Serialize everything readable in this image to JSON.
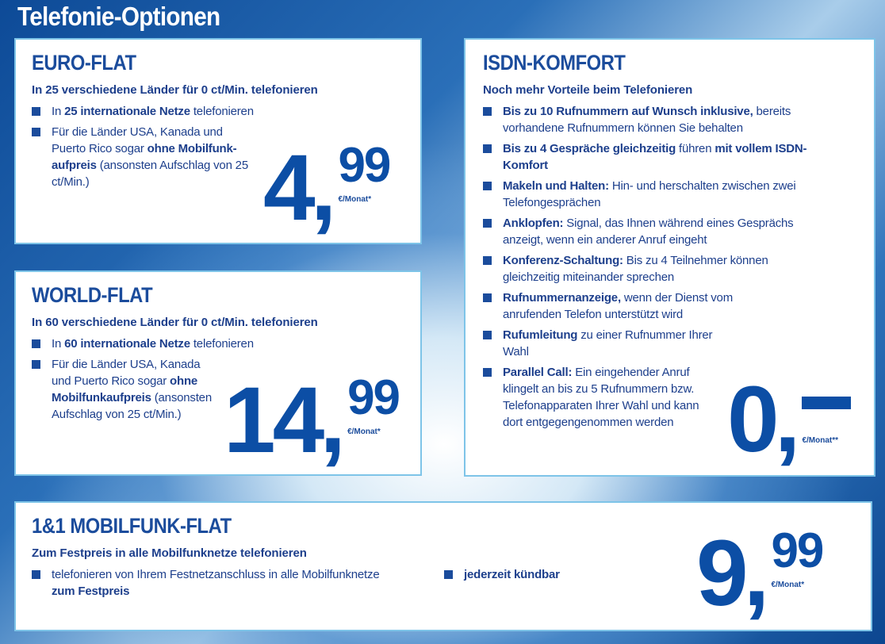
{
  "page_title": "Telefonie-Optionen",
  "colors": {
    "brand_blue": "#1b4c9c",
    "price_blue": "#0c4ea5",
    "box_border": "#7ec4e8"
  },
  "euro_flat": {
    "title": "EURO-FLAT",
    "subtitle": "In 25 verschiedene Länder für 0 ct/Min. telefonieren",
    "bullets": [
      [
        {
          "t": "In "
        },
        {
          "t": "25 internationale Netze",
          "b": true
        },
        {
          "t": " telefonieren"
        }
      ],
      [
        {
          "t": "Für die Länder USA, Kanada und Puerto Rico sogar "
        },
        {
          "t": "ohne Mobilfunk-aufpreis",
          "b": true
        },
        {
          "t": " (ansonsten Aufschlag von 25 ct/Min.)"
        }
      ]
    ],
    "price": {
      "int": "4",
      "dec": "99",
      "unit": "€/Monat*"
    }
  },
  "world_flat": {
    "title": "WORLD-FLAT",
    "subtitle": "In 60 verschiedene Länder für 0 ct/Min. telefonieren",
    "bullets": [
      [
        {
          "t": "In "
        },
        {
          "t": "60 internationale Netze",
          "b": true
        },
        {
          "t": " telefonieren"
        }
      ],
      [
        {
          "t": "Für die Länder USA, Kanada und Puerto Rico sogar "
        },
        {
          "t": "ohne Mobilfunkaufpreis",
          "b": true
        },
        {
          "t": " (ansonsten Aufschlag von 25 ct/Min.)"
        }
      ]
    ],
    "price": {
      "int": "14",
      "dec": "99",
      "unit": "€/Monat*"
    }
  },
  "isdn_komfort": {
    "title": "ISDN-KOMFORT",
    "subtitle": "Noch mehr Vorteile beim Telefonieren",
    "bullets": [
      [
        {
          "t": "Bis zu 10 Rufnummern auf Wunsch inklusive,",
          "b": true
        },
        {
          "t": " bereits vorhandene Rufnummern können Sie behalten"
        }
      ],
      [
        {
          "t": "Bis zu 4 Gespräche gleichzeitig",
          "b": true
        },
        {
          "t": " führen "
        },
        {
          "t": "mit vollem ISDN-Komfort",
          "b": true
        }
      ],
      [
        {
          "t": "Makeln und Halten:",
          "b": true
        },
        {
          "t": " Hin- und herschalten zwischen zwei Telefongesprächen"
        }
      ],
      [
        {
          "t": "Anklopfen:",
          "b": true
        },
        {
          "t": " Signal, das Ihnen während eines Gesprächs anzeigt, wenn ein anderer Anruf eingeht"
        }
      ],
      [
        {
          "t": "Konferenz-Schaltung:",
          "b": true
        },
        {
          "t": " Bis zu 4 Teilnehmer können gleichzeitig miteinander sprechen"
        }
      ],
      [
        {
          "t": "Rufnummernanzeige,",
          "b": true
        },
        {
          "t": " wenn der Dienst vom anrufenden Telefon unterstützt wird"
        }
      ],
      [
        {
          "t": "Rufumleitung",
          "b": true
        },
        {
          "t": " zu einer Rufnummer Ihrer Wahl"
        }
      ],
      [
        {
          "t": "Parallel Call:",
          "b": true
        },
        {
          "t": " Ein eingehender Anruf klingelt an bis zu 5 Rufnummern bzw. Telefonapparaten Ihrer Wahl und kann dort entgegengenommen werden"
        }
      ]
    ],
    "price": {
      "int": "0",
      "dec": "–",
      "unit": "€/Monat**"
    }
  },
  "mobilfunk_flat": {
    "title": "1&1 MOBILFUNK-FLAT",
    "subtitle": "Zum Festpreis in alle Mobilfunknetze telefonieren",
    "bullets": [
      [
        {
          "t": "telefonieren von Ihrem Festnetzanschluss in alle Mobilfunknetze "
        },
        {
          "t": "zum Festpreis",
          "b": true
        }
      ],
      [
        {
          "t": "jederzeit kündbar",
          "b": true
        }
      ]
    ],
    "price": {
      "int": "9",
      "dec": "99",
      "unit": "€/Monat*"
    }
  }
}
